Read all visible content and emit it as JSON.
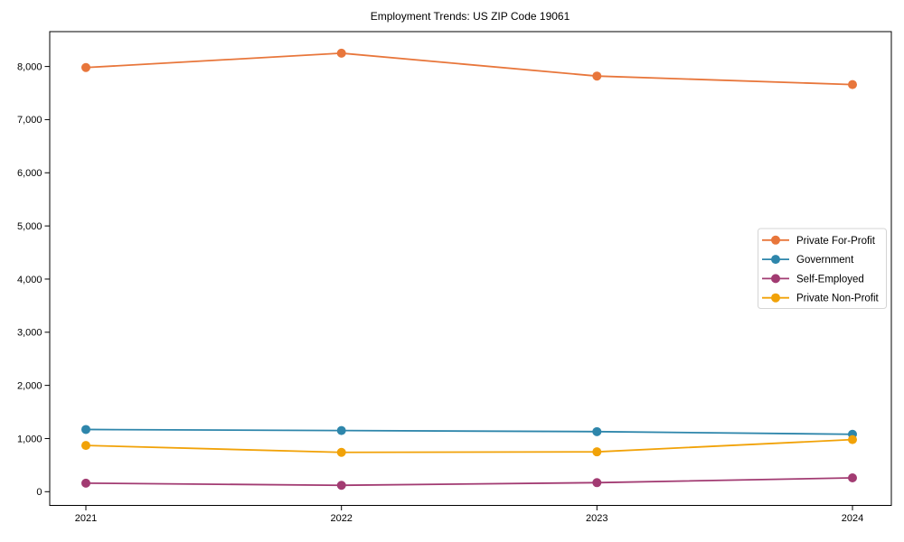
{
  "title": "Employment Trends: US ZIP Code 19061",
  "chart_data": {
    "type": "line",
    "title": "Employment Trends: US ZIP Code 19061",
    "xlabel": "",
    "ylabel": "",
    "x": [
      2021,
      2022,
      2023,
      2024
    ],
    "x_tick_labels": [
      "2021",
      "2022",
      "2023",
      "2024"
    ],
    "y_ticks": [
      0,
      1000,
      2000,
      3000,
      4000,
      5000,
      6000,
      7000,
      8000
    ],
    "y_tick_labels": [
      "0",
      "1,000",
      "2,000",
      "3,000",
      "4,000",
      "5,000",
      "6,000",
      "7,000",
      "8,000"
    ],
    "ylim": [
      -270,
      8660
    ],
    "grid": false,
    "legend_position": "right",
    "series": [
      {
        "name": "Private For-Profit",
        "color": "#E8763B",
        "values": [
          7980,
          8250,
          7820,
          7660
        ]
      },
      {
        "name": "Government",
        "color": "#2E86AB",
        "values": [
          1170,
          1150,
          1130,
          1080
        ]
      },
      {
        "name": "Self-Employed",
        "color": "#A23B72",
        "values": [
          160,
          120,
          170,
          260
        ]
      },
      {
        "name": "Private Non-Profit",
        "color": "#F1A208",
        "values": [
          870,
          740,
          750,
          980
        ]
      }
    ],
    "marker": "circle",
    "background_color": "#ffffff",
    "axis_color": "#000000"
  }
}
